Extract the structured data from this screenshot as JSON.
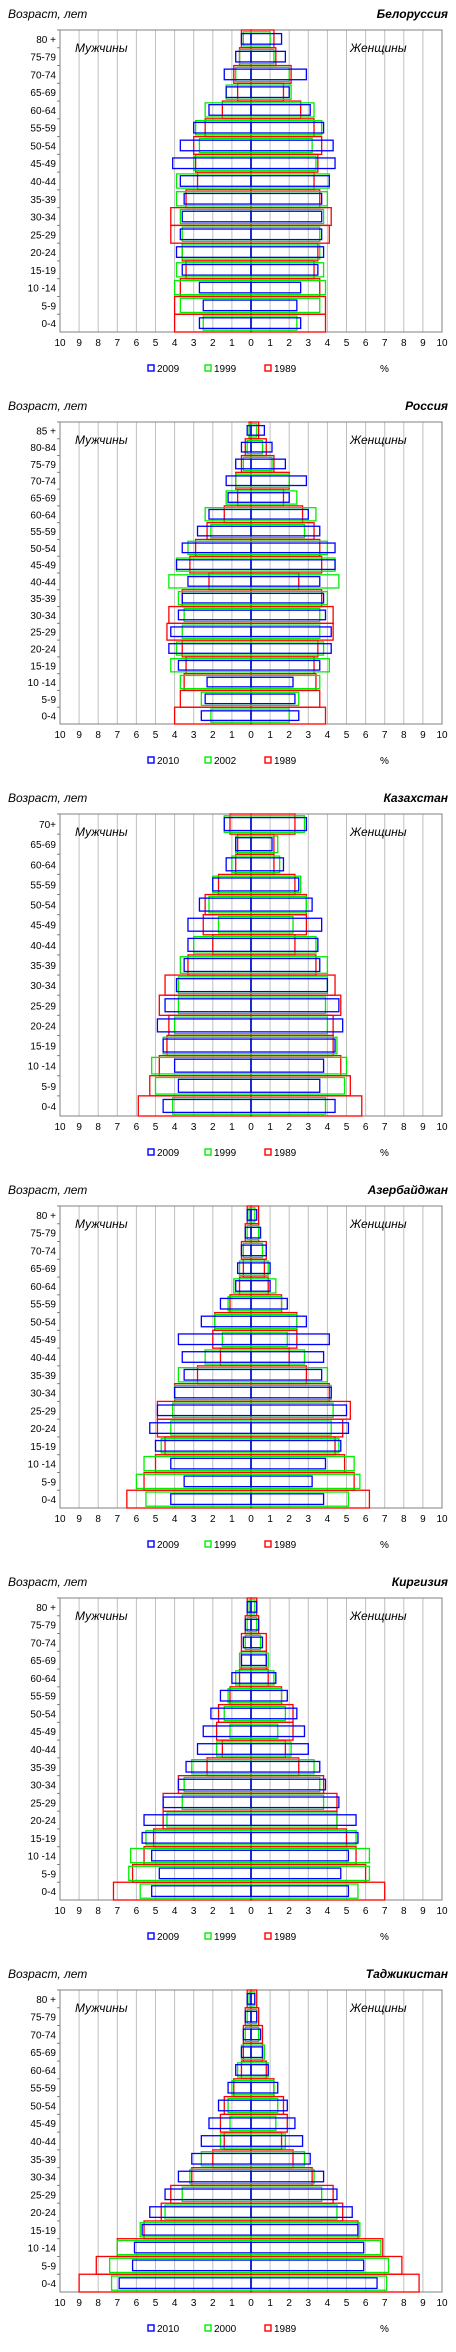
{
  "chart_data": [
    {
      "type": "population-pyramid",
      "title": "Белоруссия",
      "ylabel": "Возраст, лет",
      "left_label": "Мужчины",
      "right_label": "Женщины",
      "xlabel": "%",
      "xlim": [
        -10,
        10
      ],
      "x_tick_labels": [
        "10",
        "9",
        "8",
        "7",
        "6",
        "5",
        "4",
        "3",
        "2",
        "1",
        "0",
        "1",
        "2",
        "3",
        "4",
        "5",
        "6",
        "7",
        "8",
        "9",
        "10"
      ],
      "age_groups": [
        "0-4",
        "5-9",
        "10 -14",
        "15-19",
        "20-24",
        "25-29",
        "30-34",
        "35-39",
        "40-44",
        "45-49",
        "50-54",
        "55-59",
        "60-64",
        "65-69",
        "70-74",
        "75-79",
        "80 +"
      ],
      "colors": {
        "2009": "#0000ff",
        "1999": "#00ee00",
        "1989": "#ff0000"
      },
      "series": [
        {
          "name": "2009",
          "male": [
            2.7,
            2.5,
            2.7,
            3.6,
            3.9,
            3.7,
            3.6,
            3.5,
            3.7,
            4.1,
            3.7,
            3.0,
            2.2,
            1.3,
            1.4,
            0.8,
            0.5
          ],
          "female": [
            2.6,
            2.4,
            2.6,
            3.5,
            3.8,
            3.7,
            3.7,
            3.7,
            4.1,
            4.4,
            4.3,
            3.8,
            3.1,
            2.0,
            2.9,
            1.8,
            1.6
          ]
        },
        {
          "name": "1999",
          "male": [
            2.5,
            3.7,
            4.0,
            3.9,
            3.6,
            3.6,
            3.7,
            3.9,
            3.9,
            3.0,
            2.7,
            2.9,
            2.4,
            1.3,
            0.8,
            0.6,
            0.4
          ],
          "female": [
            2.4,
            3.6,
            3.9,
            3.8,
            3.6,
            3.6,
            3.8,
            4.0,
            4.1,
            3.4,
            3.2,
            3.7,
            3.3,
            2.1,
            2.0,
            1.2,
            1.0
          ]
        },
        {
          "name": "1989",
          "male": [
            4.0,
            4.0,
            3.7,
            3.4,
            3.6,
            4.2,
            4.2,
            3.4,
            2.8,
            2.9,
            3.0,
            2.4,
            1.5,
            0.7,
            0.9,
            0.6,
            0.5
          ],
          "female": [
            3.9,
            3.9,
            3.6,
            3.3,
            3.5,
            4.1,
            4.2,
            3.6,
            3.3,
            3.5,
            3.7,
            3.3,
            2.6,
            1.7,
            2.1,
            1.3,
            1.2
          ]
        }
      ],
      "legend": [
        "2009",
        "1999",
        "1989"
      ]
    },
    {
      "type": "population-pyramid",
      "title": "Россия",
      "ylabel": "Возраст, лет",
      "left_label": "Мужчины",
      "right_label": "Женщины",
      "xlabel": "%",
      "xlim": [
        -10,
        10
      ],
      "x_tick_labels": [
        "10",
        "9",
        "8",
        "7",
        "6",
        "5",
        "4",
        "3",
        "2",
        "1",
        "0",
        "1",
        "2",
        "3",
        "4",
        "5",
        "6",
        "7",
        "8",
        "9",
        "10"
      ],
      "age_groups": [
        "0-4",
        "5-9",
        "10 -14",
        "15-19",
        "20-24",
        "25-29",
        "30-34",
        "35-39",
        "40-44",
        "45-49",
        "50-54",
        "55-59",
        "60-64",
        "65-69",
        "70-74",
        "75-79",
        "80-84",
        "85 +"
      ],
      "colors": {
        "2010": "#0000ff",
        "2002": "#00ee00",
        "1989": "#ff0000"
      },
      "series": [
        {
          "name": "2010",
          "male": [
            2.6,
            2.4,
            2.3,
            3.8,
            4.3,
            4.2,
            3.8,
            3.6,
            3.3,
            3.9,
            3.6,
            2.8,
            2.2,
            1.2,
            1.3,
            0.8,
            0.5,
            0.2
          ],
          "female": [
            2.5,
            2.3,
            2.2,
            3.6,
            4.2,
            4.2,
            3.9,
            3.8,
            3.6,
            4.4,
            4.4,
            3.6,
            3.0,
            2.0,
            2.9,
            1.8,
            1.1,
            0.7
          ]
        },
        {
          "name": "2002",
          "male": [
            2.1,
            2.6,
            3.7,
            4.2,
            3.9,
            3.6,
            3.5,
            3.8,
            4.3,
            3.9,
            3.3,
            2.1,
            2.4,
            1.3,
            0.8,
            0.4,
            0.2,
            0.1
          ],
          "female": [
            2.0,
            2.5,
            3.6,
            4.1,
            3.8,
            3.6,
            3.6,
            4.0,
            4.6,
            4.4,
            4.0,
            2.8,
            3.4,
            2.4,
            2.0,
            1.1,
            0.6,
            0.3
          ]
        },
        {
          "name": "1989",
          "male": [
            4.0,
            3.7,
            3.5,
            3.4,
            3.6,
            4.4,
            4.3,
            3.6,
            2.2,
            3.2,
            2.9,
            2.3,
            1.4,
            0.7,
            0.8,
            0.5,
            0.3,
            0.1
          ],
          "female": [
            3.9,
            3.6,
            3.4,
            3.3,
            3.5,
            4.3,
            4.3,
            3.7,
            2.5,
            3.7,
            3.6,
            3.3,
            2.7,
            1.7,
            2.0,
            1.2,
            0.8,
            0.4
          ]
        }
      ],
      "legend": [
        "2010",
        "2002",
        "1989"
      ]
    },
    {
      "type": "population-pyramid",
      "title": "Казахстан",
      "ylabel": "Возраст, лет",
      "left_label": "Мужчины",
      "right_label": "Женщины",
      "xlabel": "%",
      "xlim": [
        -10,
        10
      ],
      "x_tick_labels": [
        "10",
        "9",
        "8",
        "7",
        "6",
        "5",
        "4",
        "3",
        "2",
        "1",
        "0",
        "1",
        "2",
        "3",
        "4",
        "5",
        "6",
        "7",
        "8",
        "9",
        "10"
      ],
      "age_groups": [
        "0-4",
        "5-9",
        "10 -14",
        "15-19",
        "20-24",
        "25-29",
        "30-34",
        "35-39",
        "40-44",
        "45-49",
        "50-54",
        "55-59",
        "60-64",
        "65-69",
        "70+"
      ],
      "colors": {
        "2009": "#0000ff",
        "1999": "#00ee00",
        "1989": "#ff0000"
      },
      "series": [
        {
          "name": "2009",
          "male": [
            4.6,
            3.8,
            4.0,
            4.6,
            4.9,
            4.5,
            3.9,
            3.5,
            3.3,
            3.3,
            2.7,
            2.0,
            1.3,
            0.8,
            1.4
          ],
          "female": [
            4.4,
            3.6,
            3.8,
            4.4,
            4.8,
            4.6,
            4.0,
            3.6,
            3.5,
            3.7,
            3.2,
            2.5,
            1.7,
            1.1,
            2.9
          ]
        },
        {
          "name": "1999",
          "male": [
            4.1,
            5.0,
            5.2,
            4.6,
            4.0,
            3.8,
            3.8,
            3.7,
            3.0,
            1.7,
            2.2,
            2.0,
            1.0,
            0.8,
            1.4
          ],
          "female": [
            3.9,
            4.9,
            5.0,
            4.5,
            4.0,
            3.9,
            4.0,
            4.0,
            3.4,
            2.2,
            2.9,
            2.6,
            1.5,
            1.4,
            2.8
          ]
        },
        {
          "name": "1989",
          "male": [
            5.9,
            5.3,
            4.8,
            4.4,
            4.3,
            4.8,
            4.5,
            3.3,
            2.0,
            2.5,
            2.4,
            1.7,
            0.8,
            0.7,
            1.1
          ],
          "female": [
            5.8,
            5.2,
            4.7,
            4.3,
            4.3,
            4.7,
            4.4,
            3.4,
            2.3,
            2.9,
            2.9,
            2.3,
            1.2,
            1.2,
            2.3
          ]
        }
      ],
      "legend": [
        "2009",
        "1999",
        "1989"
      ]
    },
    {
      "type": "population-pyramid",
      "title": "Азербайджан",
      "ylabel": "Возраст, лет",
      "left_label": "Мужчины",
      "right_label": "Женщины",
      "xlabel": "%",
      "xlim": [
        -10,
        10
      ],
      "x_tick_labels": [
        "10",
        "9",
        "8",
        "7",
        "6",
        "5",
        "4",
        "3",
        "2",
        "1",
        "0",
        "1",
        "2",
        "3",
        "4",
        "5",
        "6",
        "7",
        "8",
        "9",
        "10"
      ],
      "age_groups": [
        "0-4",
        "5-9",
        "10 -14",
        "15-19",
        "20-24",
        "25-29",
        "30-34",
        "35-39",
        "40-44",
        "45-49",
        "50-54",
        "55-59",
        "60-64",
        "65-69",
        "70-74",
        "75-79",
        "80 +"
      ],
      "colors": {
        "2009": "#0000ff",
        "1999": "#00ee00",
        "1989": "#ff0000"
      },
      "series": [
        {
          "name": "2009",
          "male": [
            4.2,
            3.5,
            4.2,
            5.0,
            5.3,
            4.9,
            4.0,
            3.5,
            3.6,
            3.8,
            2.6,
            1.6,
            0.8,
            0.7,
            0.5,
            0.3,
            0.2
          ],
          "female": [
            3.8,
            3.2,
            3.9,
            4.7,
            5.1,
            5.0,
            4.2,
            3.7,
            3.8,
            4.1,
            2.9,
            1.9,
            1.0,
            1.0,
            0.8,
            0.5,
            0.3
          ]
        },
        {
          "name": "1999",
          "male": [
            5.5,
            6.0,
            5.6,
            4.7,
            4.2,
            4.1,
            4.0,
            3.8,
            2.4,
            1.5,
            1.9,
            1.2,
            0.9,
            0.6,
            0.4,
            0.2,
            0.1
          ],
          "female": [
            5.1,
            5.7,
            5.4,
            4.6,
            4.2,
            4.3,
            4.2,
            4.0,
            2.8,
            1.9,
            2.4,
            1.6,
            1.3,
            0.9,
            0.6,
            0.4,
            0.2
          ]
        },
        {
          "name": "1989",
          "male": [
            6.5,
            5.6,
            5.0,
            4.5,
            4.9,
            4.9,
            4.0,
            2.8,
            1.6,
            2.0,
            1.9,
            1.1,
            0.6,
            0.4,
            0.5,
            0.3,
            0.2
          ],
          "female": [
            6.2,
            5.4,
            4.9,
            4.4,
            4.8,
            5.2,
            4.1,
            2.9,
            2.0,
            2.4,
            2.4,
            1.6,
            0.9,
            0.7,
            0.8,
            0.4,
            0.4
          ]
        }
      ],
      "legend": [
        "2009",
        "1999",
        "1989"
      ]
    },
    {
      "type": "population-pyramid",
      "title": "Киргизия",
      "ylabel": "Возраст, лет",
      "left_label": "Мужчины",
      "right_label": "Женщины",
      "xlabel": "%",
      "xlim": [
        -10,
        10
      ],
      "x_tick_labels": [
        "10",
        "9",
        "8",
        "7",
        "6",
        "5",
        "4",
        "3",
        "2",
        "1",
        "0",
        "1",
        "2",
        "3",
        "4",
        "5",
        "6",
        "7",
        "8",
        "9",
        "10"
      ],
      "age_groups": [
        "0-4",
        "5-9",
        "10 -14",
        "15-19",
        "20-24",
        "25-29",
        "30-34",
        "35-39",
        "40-44",
        "45-49",
        "50-54",
        "55-59",
        "60-64",
        "65-69",
        "70-74",
        "75-79",
        "80 +"
      ],
      "colors": {
        "2009": "#0000ff",
        "1999": "#00ee00",
        "1989": "#ff0000"
      },
      "series": [
        {
          "name": "2009",
          "male": [
            5.2,
            4.8,
            5.2,
            5.7,
            5.6,
            4.6,
            3.8,
            3.4,
            2.8,
            2.5,
            2.1,
            1.6,
            1.0,
            0.5,
            0.4,
            0.3,
            0.2
          ],
          "female": [
            5.1,
            4.7,
            5.1,
            5.6,
            5.5,
            4.6,
            3.9,
            3.6,
            3.0,
            2.8,
            2.4,
            1.9,
            1.3,
            0.8,
            0.6,
            0.4,
            0.3
          ]
        },
        {
          "name": "1999",
          "male": [
            5.8,
            6.4,
            6.3,
            5.5,
            4.4,
            3.6,
            3.5,
            3.1,
            1.8,
            1.1,
            1.4,
            1.2,
            0.8,
            0.6,
            0.3,
            0.2,
            0.1
          ],
          "female": [
            5.6,
            6.2,
            6.2,
            5.5,
            4.5,
            3.8,
            3.6,
            3.3,
            2.1,
            1.4,
            1.8,
            1.6,
            1.2,
            0.9,
            0.5,
            0.3,
            0.2
          ]
        },
        {
          "name": "1989",
          "male": [
            7.2,
            6.2,
            5.6,
            5.1,
            4.6,
            4.6,
            3.8,
            2.3,
            1.5,
            1.8,
            1.7,
            1.1,
            0.6,
            0.5,
            0.5,
            0.3,
            0.2
          ],
          "female": [
            7.0,
            6.0,
            5.5,
            5.0,
            4.5,
            4.5,
            3.8,
            2.5,
            1.8,
            2.2,
            2.2,
            1.6,
            0.9,
            0.8,
            0.8,
            0.4,
            0.3
          ]
        }
      ],
      "legend": [
        "2009",
        "1999",
        "1989"
      ]
    },
    {
      "type": "population-pyramid",
      "title": "Таджикистан",
      "ylabel": "Возраст, лет",
      "left_label": "Мужчины",
      "right_label": "Женщины",
      "xlabel": "%",
      "xlim": [
        -10,
        10
      ],
      "x_tick_labels": [
        "10",
        "9",
        "8",
        "7",
        "6",
        "5",
        "4",
        "3",
        "2",
        "1",
        "0",
        "1",
        "2",
        "3",
        "4",
        "5",
        "6",
        "7",
        "8",
        "9",
        "10"
      ],
      "age_groups": [
        "0-4",
        "5-9",
        "10 -14",
        "15-19",
        "20-24",
        "25-29",
        "30-34",
        "35-39",
        "40-44",
        "45-49",
        "50-54",
        "55-59",
        "60-64",
        "65-69",
        "70-74",
        "75-79",
        "80 +"
      ],
      "colors": {
        "2010": "#0000ff",
        "2000": "#00ee00",
        "1989": "#ff0000"
      },
      "series": [
        {
          "name": "2010",
          "male": [
            6.9,
            6.2,
            6.1,
            5.7,
            5.3,
            4.5,
            3.8,
            3.1,
            2.6,
            2.2,
            1.7,
            1.2,
            0.8,
            0.5,
            0.4,
            0.3,
            0.2
          ],
          "female": [
            6.6,
            5.9,
            5.9,
            5.6,
            5.3,
            4.5,
            3.8,
            3.1,
            2.7,
            2.3,
            1.9,
            1.4,
            0.9,
            0.6,
            0.5,
            0.3,
            0.2
          ]
        },
        {
          "name": "2000",
          "male": [
            7.3,
            7.4,
            7.0,
            5.8,
            4.5,
            3.6,
            3.2,
            2.6,
            1.6,
            1.1,
            1.2,
            1.0,
            0.7,
            0.5,
            0.3,
            0.2,
            0.1
          ],
          "female": [
            7.1,
            7.2,
            6.8,
            5.7,
            4.5,
            3.7,
            3.3,
            2.8,
            1.8,
            1.3,
            1.4,
            1.2,
            0.9,
            0.7,
            0.4,
            0.3,
            0.2
          ]
        },
        {
          "name": "1989",
          "male": [
            9.0,
            8.1,
            7.0,
            5.6,
            4.7,
            4.2,
            3.1,
            2.0,
            1.4,
            1.6,
            1.4,
            0.9,
            0.5,
            0.4,
            0.4,
            0.3,
            0.2
          ],
          "female": [
            8.8,
            7.9,
            6.9,
            5.6,
            4.8,
            4.3,
            3.2,
            2.2,
            1.6,
            1.9,
            1.7,
            1.2,
            0.8,
            0.6,
            0.6,
            0.4,
            0.3
          ]
        }
      ],
      "legend": [
        "2010",
        "2000",
        "1989"
      ]
    }
  ]
}
